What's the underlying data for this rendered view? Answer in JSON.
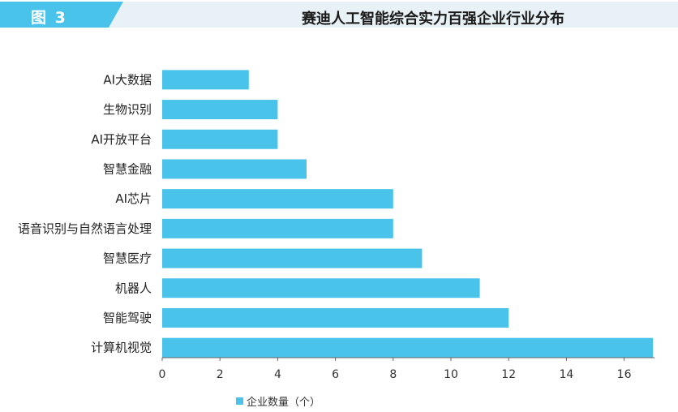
{
  "header": {
    "figure_label": "图 3",
    "title": "赛迪人工智能综合实力百强企业行业分布"
  },
  "colors": {
    "bar": "#49c3ea",
    "header_band": "#49c3ea",
    "header_light": "#e8f1f5"
  },
  "chart_data": {
    "type": "bar",
    "orientation": "horizontal",
    "categories": [
      "AI大数据",
      "生物识别",
      "AI开放平台",
      "智慧金融",
      "AI芯片",
      "语音识别与自然语言处理",
      "智慧医疗",
      "机器人",
      "智能驾驶",
      "计算机视觉"
    ],
    "series": [
      {
        "name": "企业数量（个）",
        "values": [
          3,
          4,
          4,
          5,
          8,
          8,
          9,
          11,
          12,
          17
        ]
      }
    ],
    "xlim": [
      0,
      17
    ],
    "xticks": [
      0,
      2,
      4,
      6,
      8,
      10,
      12,
      14,
      16
    ],
    "grid": false,
    "legend_position": "bottom"
  }
}
